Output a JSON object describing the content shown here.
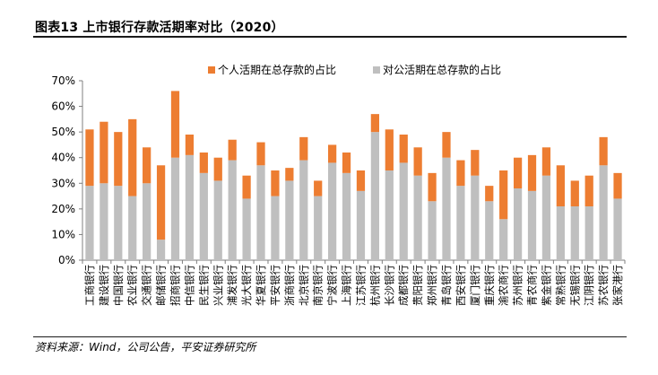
{
  "title": "图表13   上市银行存款活期率对比（2020）",
  "source": "资料来源：Wind，公司公告，平安证券研究所",
  "colors": {
    "personal": "#ED7D31",
    "corporate": "#BFBFBF"
  },
  "chart_data": {
    "type": "bar",
    "stacked": true,
    "ylim": [
      0,
      70
    ],
    "yticks": [
      "0%",
      "10%",
      "20%",
      "30%",
      "40%",
      "50%",
      "60%",
      "70%"
    ],
    "categories": [
      "工商银行",
      "建设银行",
      "中国银行",
      "农业银行",
      "交通银行",
      "邮储银行",
      "招商银行",
      "中信银行",
      "民生银行",
      "兴业银行",
      "浦发银行",
      "光大银行",
      "华夏银行",
      "平安银行",
      "浙商银行",
      "北京银行",
      "南京银行",
      "宁波银行",
      "上海银行",
      "江苏银行",
      "杭州银行",
      "长沙银行",
      "成都银行",
      "贵阳银行",
      "郑州银行",
      "青岛银行",
      "西安银行",
      "厦门银行",
      "重庆银行",
      "渝农商行",
      "苏州银行",
      "青农商行",
      "紫金银行",
      "常熟银行",
      "无锡银行",
      "江阴银行",
      "苏农银行",
      "张家港行"
    ],
    "series": [
      {
        "name": "对公活期在总存款的占比",
        "values": [
          29,
          30,
          29,
          25,
          30,
          8,
          40,
          41,
          34,
          31,
          39,
          24,
          37,
          25,
          31,
          39,
          25,
          38,
          34,
          27,
          50,
          35,
          38,
          33,
          23,
          40,
          29,
          33,
          23,
          16,
          28,
          27,
          33,
          21,
          21,
          21,
          37,
          24
        ]
      },
      {
        "name": "个人活期在总存款的占比",
        "values": [
          22,
          24,
          21,
          30,
          14,
          29,
          26,
          8,
          8,
          9,
          8,
          9,
          9,
          10,
          5,
          9,
          6,
          7,
          8,
          8,
          7,
          16,
          11,
          11,
          11,
          10,
          10,
          10,
          6,
          19,
          12,
          14,
          11,
          16,
          10,
          12,
          11,
          10
        ]
      }
    ],
    "legend": [
      "个人活期在总存款的占比",
      "对公活期在总存款的占比"
    ],
    "legend_position": "top"
  }
}
